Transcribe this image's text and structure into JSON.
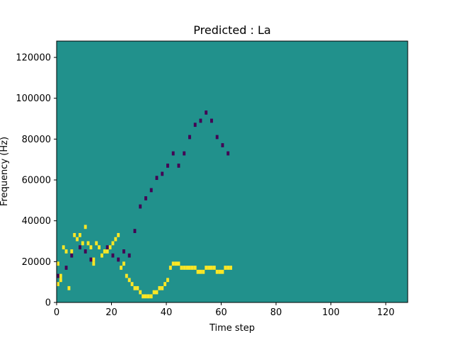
{
  "chart_data": {
    "type": "heatmap",
    "title": "Predicted : La",
    "xlabel": "Time step",
    "ylabel": "Frequency (Hz)",
    "xlim": [
      0,
      128
    ],
    "ylim": [
      0,
      128000
    ],
    "xticks": [
      0,
      20,
      40,
      60,
      80,
      100,
      120
    ],
    "yticks": [
      0,
      20000,
      40000,
      60000,
      80000,
      100000,
      120000
    ],
    "xtick_labels": [
      "0",
      "20",
      "40",
      "60",
      "80",
      "100",
      "120"
    ],
    "ytick_labels": [
      "0",
      "20000",
      "40000",
      "60000",
      "80000",
      "100000",
      "120000"
    ],
    "grid": false,
    "legend": "none",
    "colors": {
      "background": "#21918c",
      "low": "#440154",
      "high": "#fde725"
    },
    "value_levels": {
      "low": -1,
      "background": 0,
      "high": 1
    },
    "n_time_steps": 128,
    "n_freq_bins": 64,
    "freq_bin_width_hz": 2000,
    "cells": [
      [
        0,
        4,
        1
      ],
      [
        0,
        9,
        1
      ],
      [
        1,
        5,
        1
      ],
      [
        1,
        6,
        1
      ],
      [
        2,
        13,
        1
      ],
      [
        3,
        12,
        1
      ],
      [
        4,
        3,
        1
      ],
      [
        5,
        12,
        1
      ],
      [
        6,
        16,
        1
      ],
      [
        7,
        15,
        1
      ],
      [
        8,
        16,
        1
      ],
      [
        9,
        14,
        1
      ],
      [
        10,
        18,
        1
      ],
      [
        11,
        14,
        1
      ],
      [
        12,
        13,
        1
      ],
      [
        13,
        10,
        1
      ],
      [
        13,
        9,
        1
      ],
      [
        14,
        14,
        1
      ],
      [
        15,
        13,
        1
      ],
      [
        16,
        11,
        1
      ],
      [
        17,
        12,
        1
      ],
      [
        18,
        12,
        1
      ],
      [
        19,
        13,
        1
      ],
      [
        20,
        14,
        1
      ],
      [
        21,
        15,
        1
      ],
      [
        22,
        16,
        1
      ],
      [
        23,
        8,
        1
      ],
      [
        24,
        9,
        1
      ],
      [
        25,
        6,
        1
      ],
      [
        26,
        5,
        1
      ],
      [
        27,
        4,
        1
      ],
      [
        28,
        3,
        1
      ],
      [
        29,
        3,
        1
      ],
      [
        30,
        2,
        1
      ],
      [
        31,
        1,
        1
      ],
      [
        32,
        1,
        1
      ],
      [
        33,
        1,
        1
      ],
      [
        34,
        1,
        1
      ],
      [
        35,
        2,
        1
      ],
      [
        36,
        2,
        1
      ],
      [
        37,
        3,
        1
      ],
      [
        38,
        3,
        1
      ],
      [
        39,
        4,
        1
      ],
      [
        40,
        5,
        1
      ],
      [
        41,
        8,
        1
      ],
      [
        42,
        9,
        1
      ],
      [
        43,
        9,
        1
      ],
      [
        44,
        9,
        1
      ],
      [
        45,
        8,
        1
      ],
      [
        46,
        8,
        1
      ],
      [
        47,
        8,
        1
      ],
      [
        48,
        8,
        1
      ],
      [
        49,
        8,
        1
      ],
      [
        50,
        8,
        1
      ],
      [
        51,
        7,
        1
      ],
      [
        52,
        7,
        1
      ],
      [
        53,
        7,
        1
      ],
      [
        54,
        8,
        1
      ],
      [
        55,
        8,
        1
      ],
      [
        56,
        8,
        1
      ],
      [
        57,
        8,
        1
      ],
      [
        58,
        7,
        1
      ],
      [
        59,
        7,
        1
      ],
      [
        60,
        7,
        1
      ],
      [
        61,
        8,
        1
      ],
      [
        62,
        8,
        1
      ],
      [
        63,
        8,
        1
      ],
      [
        0,
        6,
        -1
      ],
      [
        3,
        8,
        -1
      ],
      [
        5,
        11,
        -1
      ],
      [
        8,
        13,
        -1
      ],
      [
        10,
        12,
        -1
      ],
      [
        12,
        10,
        -1
      ],
      [
        18,
        13,
        -1
      ],
      [
        20,
        11,
        -1
      ],
      [
        22,
        10,
        -1
      ],
      [
        24,
        12,
        -1
      ],
      [
        26,
        11,
        -1
      ],
      [
        28,
        17,
        -1
      ],
      [
        30,
        23,
        -1
      ],
      [
        32,
        25,
        -1
      ],
      [
        34,
        27,
        -1
      ],
      [
        36,
        30,
        -1
      ],
      [
        38,
        31,
        -1
      ],
      [
        40,
        33,
        -1
      ],
      [
        42,
        36,
        -1
      ],
      [
        44,
        33,
        -1
      ],
      [
        46,
        36,
        -1
      ],
      [
        48,
        40,
        -1
      ],
      [
        50,
        43,
        -1
      ],
      [
        52,
        44,
        -1
      ],
      [
        54,
        46,
        -1
      ],
      [
        56,
        44,
        -1
      ],
      [
        58,
        40,
        -1
      ],
      [
        60,
        38,
        -1
      ],
      [
        62,
        36,
        -1
      ]
    ]
  }
}
